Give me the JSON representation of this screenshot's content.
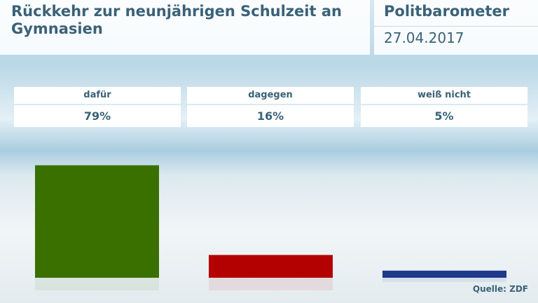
{
  "chart_data": {
    "type": "bar",
    "title": "Rückkehr zur neunjährigen Schulzeit an Gymnasien",
    "subtitle": "Politbarometer",
    "date": "27.04.2017",
    "categories": [
      "dafür",
      "dagegen",
      "weiß nicht"
    ],
    "values": [
      79,
      16,
      5
    ],
    "value_labels": [
      "79%",
      "16%",
      "5%"
    ],
    "colors": [
      "#3a7000",
      "#b30000",
      "#1f3a8a"
    ],
    "source": "Quelle: ZDF"
  }
}
